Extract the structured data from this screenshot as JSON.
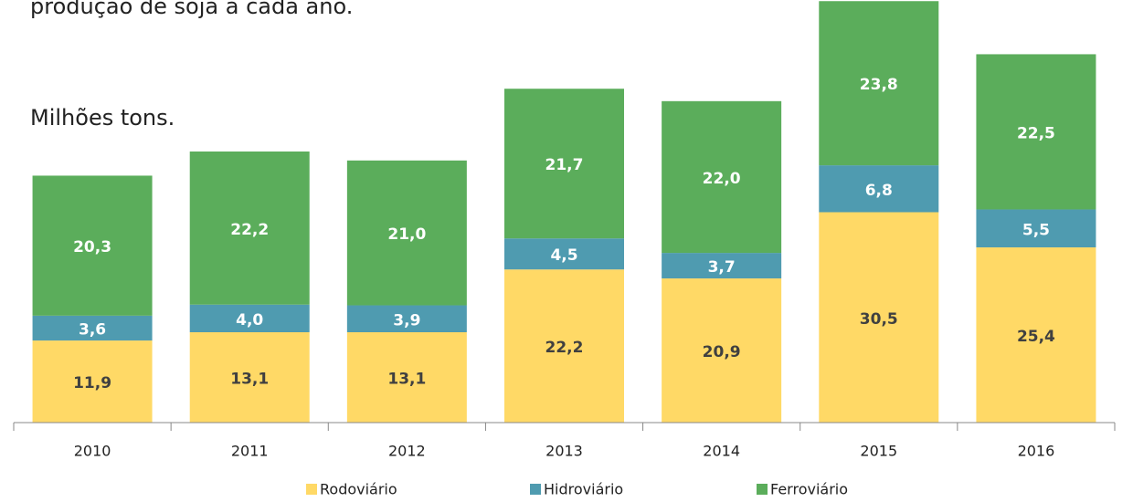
{
  "chart_data": {
    "type": "stacked_bar",
    "title": "produção de soja a cada ano.",
    "ylabel": "Milhões  tons.",
    "categories": [
      "2010",
      "2011",
      "2012",
      "2013",
      "2014",
      "2015",
      "2016"
    ],
    "series": [
      {
        "name": "Rodoviário",
        "color": "#ffd966",
        "values": [
          11.9,
          13.1,
          13.1,
          22.2,
          20.9,
          30.5,
          25.4
        ],
        "value_labels": [
          "11,9",
          "13,1",
          "13,1",
          "22,2",
          "20,9",
          "30,5",
          "25,4"
        ]
      },
      {
        "name": "Hidroviário",
        "color": "#4f9bb0",
        "values": [
          3.6,
          4.0,
          3.9,
          4.5,
          3.7,
          6.8,
          5.5
        ],
        "value_labels": [
          "3,6",
          "4,0",
          "3,9",
          "4,5",
          "3,7",
          "6,8",
          "5,5"
        ]
      },
      {
        "name": "Ferroviário",
        "color": "#5bad5b",
        "values": [
          20.3,
          22.2,
          21.0,
          21.7,
          22.0,
          23.8,
          22.5
        ],
        "value_labels": [
          "20,3",
          "22,2",
          "21,0",
          "21,7",
          "22,0",
          "23,8",
          "22,5"
        ]
      }
    ],
    "ylim": [
      0,
      61
    ],
    "legend": "bottom"
  }
}
